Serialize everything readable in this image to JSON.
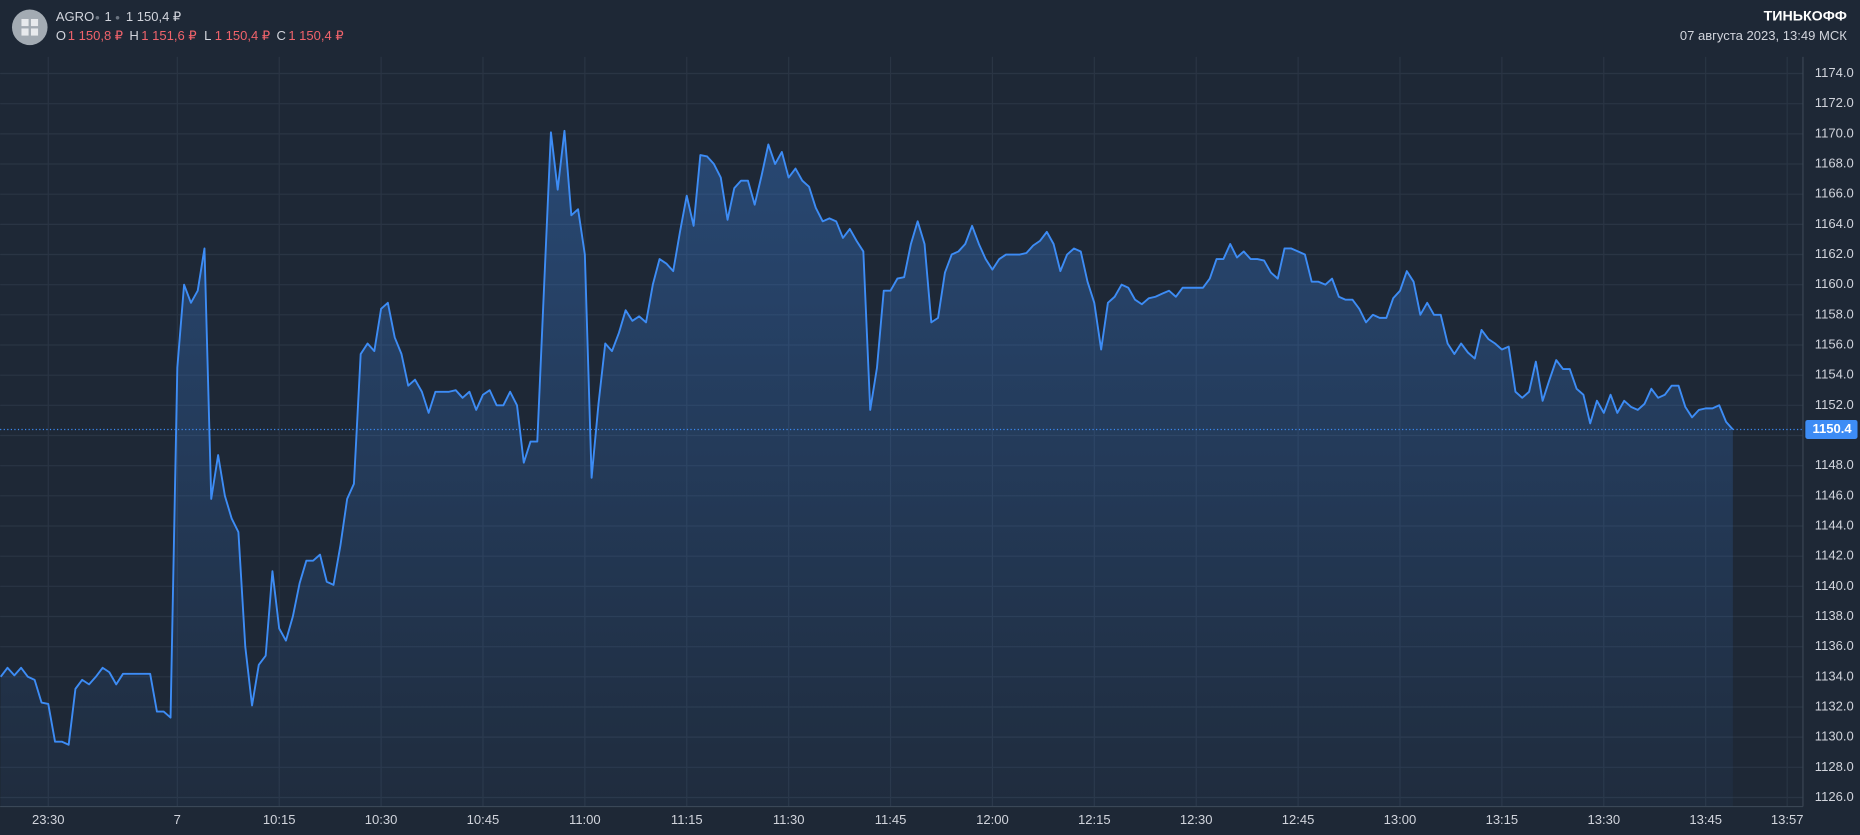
{
  "header": {
    "ticker": "AGRO",
    "interval": "1",
    "price": "1 150,4 ₽",
    "ohlc": [
      {
        "label": "O",
        "value": "1 150,8 ₽"
      },
      {
        "label": "H",
        "value": "1 151,6 ₽"
      },
      {
        "label": "L",
        "value": "1 150,4 ₽"
      },
      {
        "label": "C",
        "value": "1 150,4 ₽"
      }
    ],
    "brand": "ТИНЬКОФФ",
    "datetime": "07 августа 2023, 13:49 МСК"
  },
  "chart_data": {
    "type": "area",
    "color": "#3d8cf5",
    "grid": true,
    "last_value": 1150.4,
    "ylim": [
      1125.4,
      1175.1
    ],
    "yticks": [
      {
        "value": 1126,
        "label": "1126.0"
      },
      {
        "value": 1128,
        "label": "1128.0"
      },
      {
        "value": 1130,
        "label": "1130.0"
      },
      {
        "value": 1132,
        "label": "1132.0"
      },
      {
        "value": 1134,
        "label": "1134.0"
      },
      {
        "value": 1136,
        "label": "1136.0"
      },
      {
        "value": 1138,
        "label": "1138.0"
      },
      {
        "value": 1140,
        "label": "1140.0"
      },
      {
        "value": 1142,
        "label": "1142.0"
      },
      {
        "value": 1144,
        "label": "1144.0"
      },
      {
        "value": 1146,
        "label": "1146.0"
      },
      {
        "value": 1148,
        "label": "1148.0"
      },
      {
        "value": 1150,
        "label": "1150.0"
      },
      {
        "value": 1152,
        "label": "1152.0"
      },
      {
        "value": 1154,
        "label": "1154.0"
      },
      {
        "value": 1156,
        "label": "1156.0"
      },
      {
        "value": 1158,
        "label": "1158.0"
      },
      {
        "value": 1160,
        "label": "1160.0"
      },
      {
        "value": 1162,
        "label": "1162.0"
      },
      {
        "value": 1164,
        "label": "1164.0"
      },
      {
        "value": 1166,
        "label": "1166.0"
      },
      {
        "value": 1168,
        "label": "1168.0"
      },
      {
        "value": 1170,
        "label": "1170.0"
      },
      {
        "value": 1172,
        "label": "1172.0"
      },
      {
        "value": 1174,
        "label": "1174.0"
      }
    ],
    "categories": [
      null,
      null,
      null,
      null,
      null,
      null,
      null,
      "23:30",
      null,
      null,
      null,
      null,
      null,
      null,
      null,
      null,
      null,
      null,
      null,
      null,
      null,
      null,
      null,
      null,
      null,
      null,
      "7",
      null,
      null,
      null,
      null,
      null,
      null,
      null,
      null,
      null,
      null,
      null,
      null,
      null,
      null,
      "10:15",
      null,
      null,
      null,
      null,
      null,
      null,
      null,
      null,
      null,
      null,
      null,
      null,
      null,
      null,
      "10:30",
      null,
      null,
      null,
      null,
      null,
      null,
      null,
      null,
      null,
      null,
      null,
      null,
      null,
      null,
      "10:45",
      null,
      null,
      null,
      null,
      null,
      null,
      null,
      null,
      null,
      null,
      null,
      null,
      null,
      null,
      "11:00",
      null,
      null,
      null,
      null,
      null,
      null,
      null,
      null,
      null,
      null,
      null,
      null,
      null,
      null,
      "11:15",
      null,
      null,
      null,
      null,
      null,
      null,
      null,
      null,
      null,
      null,
      null,
      null,
      null,
      null,
      "11:30",
      null,
      null,
      null,
      null,
      null,
      null,
      null,
      null,
      null,
      null,
      null,
      null,
      null,
      null,
      "11:45",
      null,
      null,
      null,
      null,
      null,
      null,
      null,
      null,
      null,
      null,
      null,
      null,
      null,
      null,
      "12:00",
      null,
      null,
      null,
      null,
      null,
      null,
      null,
      null,
      null,
      null,
      null,
      null,
      null,
      null,
      "12:15",
      null,
      null,
      null,
      null,
      null,
      null,
      null,
      null,
      null,
      null,
      null,
      null,
      null,
      null,
      "12:30",
      null,
      null,
      null,
      null,
      null,
      null,
      null,
      null,
      null,
      null,
      null,
      null,
      null,
      null,
      "12:45",
      null,
      null,
      null,
      null,
      null,
      null,
      null,
      null,
      null,
      null,
      null,
      null,
      null,
      null,
      "13:00",
      null,
      null,
      null,
      null,
      null,
      null,
      null,
      null,
      null,
      null,
      null,
      null,
      null,
      null,
      "13:15",
      null,
      null,
      null,
      null,
      null,
      null,
      null,
      null,
      null,
      null,
      null,
      null,
      null,
      null,
      "13:30",
      null,
      null,
      null,
      null,
      null,
      null,
      null,
      null,
      null,
      null,
      null,
      null,
      null,
      null,
      "13:45",
      null,
      null,
      null,
      null,
      null,
      null,
      null,
      null,
      null,
      null,
      null,
      "13:57"
    ],
    "values": [
      1134.0,
      1134.6,
      1134.1,
      1134.6,
      1134.0,
      1133.8,
      1132.3,
      1132.2,
      1129.7,
      1129.7,
      1129.5,
      1133.2,
      1133.8,
      1133.5,
      1134.0,
      1134.6,
      1134.3,
      1133.5,
      1134.2,
      1134.2,
      1134.2,
      1134.2,
      1134.2,
      1131.7,
      1131.7,
      1131.3,
      1154.5,
      1160.0,
      1158.8,
      1159.6,
      1162.4,
      1145.8,
      1148.7,
      1146.0,
      1144.5,
      1143.6,
      1136.0,
      1132.1,
      1134.8,
      1135.4,
      1141.0,
      1137.2,
      1136.4,
      1138.0,
      1140.2,
      1141.7,
      1141.7,
      1142.1,
      1140.3,
      1140.1,
      1142.7,
      1145.8,
      1146.8,
      1155.4,
      1156.1,
      1155.6,
      1158.4,
      1158.8,
      1156.5,
      1155.4,
      1153.3,
      1153.7,
      1152.9,
      1151.5,
      1152.9,
      1152.9,
      1152.9,
      1153.0,
      1152.5,
      1152.9,
      1151.7,
      1152.7,
      1153.0,
      1152.0,
      1152.0,
      1152.9,
      1152.0,
      1148.2,
      1149.6,
      1149.6,
      1160.0,
      1170.1,
      1166.3,
      1170.2,
      1164.6,
      1165.0,
      1162.0,
      1147.2,
      1152.1,
      1156.1,
      1155.6,
      1156.8,
      1158.3,
      1157.6,
      1157.9,
      1157.5,
      1160.0,
      1161.7,
      1161.4,
      1160.9,
      1163.5,
      1165.9,
      1163.9,
      1168.6,
      1168.5,
      1168.0,
      1167.1,
      1164.3,
      1166.4,
      1166.9,
      1166.9,
      1165.3,
      1167.2,
      1169.3,
      1168.0,
      1168.8,
      1167.1,
      1167.7,
      1166.9,
      1166.5,
      1165.1,
      1164.2,
      1164.4,
      1164.2,
      1163.1,
      1163.7,
      1162.9,
      1162.2,
      1151.7,
      1154.5,
      1159.6,
      1159.6,
      1160.4,
      1160.5,
      1162.7,
      1164.2,
      1162.7,
      1157.5,
      1157.8,
      1160.8,
      1162.0,
      1162.2,
      1162.7,
      1163.9,
      1162.7,
      1161.7,
      1161.0,
      1161.7,
      1162.0,
      1162.0,
      1162.0,
      1162.1,
      1162.6,
      1162.9,
      1163.5,
      1162.7,
      1160.9,
      1162.0,
      1162.4,
      1162.2,
      1160.2,
      1158.8,
      1155.7,
      1158.8,
      1159.2,
      1160.0,
      1159.8,
      1159.0,
      1158.7,
      1159.1,
      1159.2,
      1159.4,
      1159.6,
      1159.2,
      1159.8,
      1159.8,
      1159.8,
      1159.8,
      1160.4,
      1161.7,
      1161.7,
      1162.7,
      1161.8,
      1162.2,
      1161.7,
      1161.7,
      1161.6,
      1160.8,
      1160.4,
      1162.4,
      1162.4,
      1162.2,
      1162.0,
      1160.2,
      1160.2,
      1160.0,
      1160.4,
      1159.2,
      1159.0,
      1159.0,
      1158.4,
      1157.5,
      1158.0,
      1157.8,
      1157.8,
      1159.1,
      1159.6,
      1160.9,
      1160.2,
      1158.0,
      1158.8,
      1158.0,
      1158.0,
      1156.1,
      1155.4,
      1156.1,
      1155.5,
      1155.1,
      1157.0,
      1156.4,
      1156.1,
      1155.7,
      1155.9,
      1152.9,
      1152.5,
      1152.9,
      1154.9,
      1152.3,
      1153.7,
      1155.0,
      1154.4,
      1154.4,
      1153.1,
      1152.7,
      1150.8,
      1152.3,
      1151.5,
      1152.7,
      1151.5,
      1152.3,
      1151.9,
      1151.7,
      1152.1,
      1153.1,
      1152.5,
      1152.7,
      1153.3,
      1153.3,
      1151.9,
      1151.2,
      1151.7,
      1151.8,
      1151.8,
      1152.0,
      1150.9,
      1150.4,
      null,
      null,
      null,
      null,
      null,
      null,
      null,
      null
    ]
  }
}
